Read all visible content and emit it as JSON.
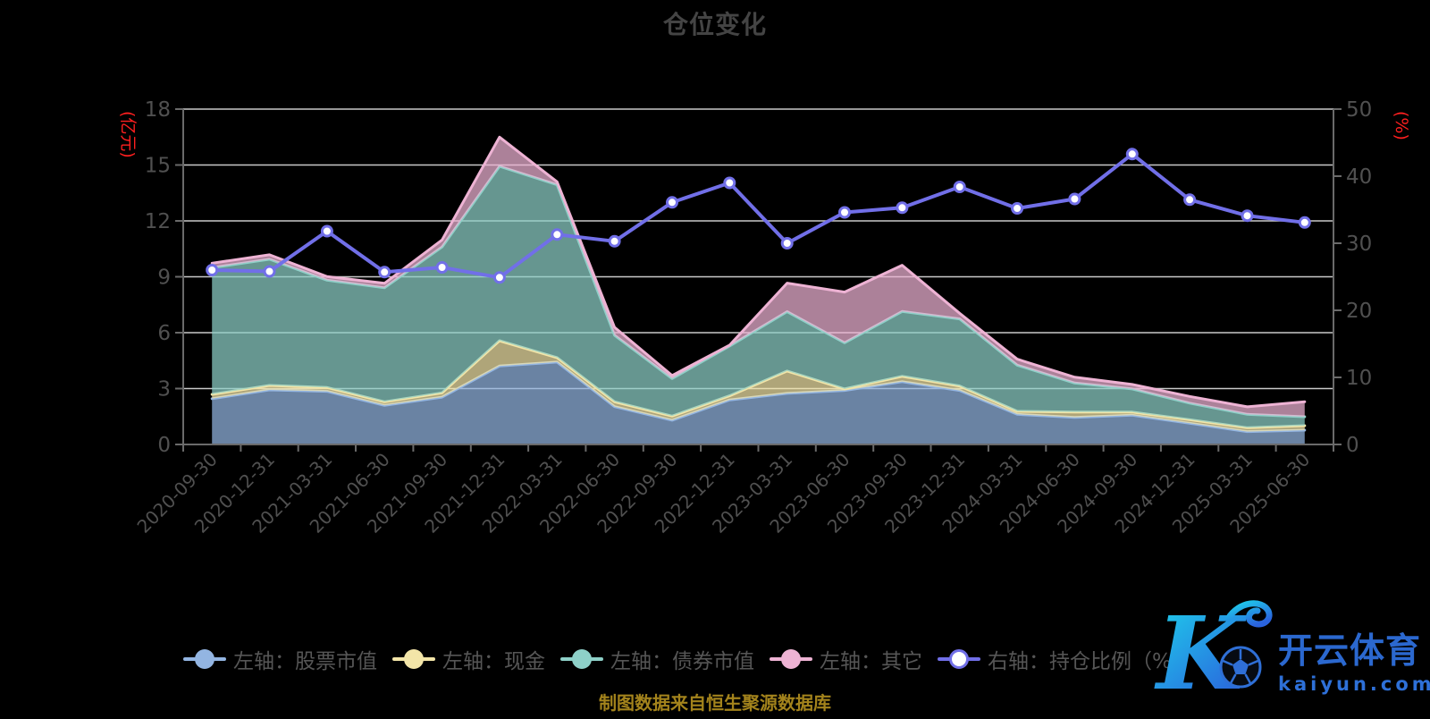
{
  "title": "仓位变化",
  "source_note": "制图数据来自恒生聚源数据库",
  "watermark": {
    "brand": "开云体育",
    "domain": "kaiyun.com",
    "accent": "#2b68cf"
  },
  "chart_data": {
    "type": "area",
    "stacked": true,
    "title": "仓位变化",
    "grid": true,
    "grid_color": "#c9c9c9",
    "axis_line_color": "#6a6a6a",
    "tick_label_color": "#505050",
    "fill_opacity": 0.72,
    "background": "#000000",
    "legend_position": "bottom",
    "categories": [
      "2020-09-30",
      "2020-12-31",
      "2021-03-31",
      "2021-06-30",
      "2021-09-30",
      "2021-12-31",
      "2022-03-31",
      "2022-06-30",
      "2022-09-30",
      "2022-12-31",
      "2023-03-31",
      "2023-06-30",
      "2023-09-30",
      "2023-12-31",
      "2024-03-31",
      "2024-06-30",
      "2024-09-30",
      "2024-12-31",
      "2025-03-31",
      "2025-06-30"
    ],
    "left_axis": {
      "label": "(亿元)",
      "label_color": "#ff1f1f",
      "ticks": [
        0,
        3,
        6,
        9,
        12,
        15,
        18
      ],
      "max": 18
    },
    "right_axis": {
      "label": "(%)",
      "label_color": "#ff1f1f",
      "ticks": [
        0,
        10,
        20,
        30,
        40,
        50
      ],
      "max": 50
    },
    "series": [
      {
        "name": "左轴：股票市值",
        "type": "area",
        "color": "#93b5e2",
        "values": [
          2.46,
          2.93,
          2.85,
          2.1,
          2.54,
          4.21,
          4.42,
          2.03,
          1.3,
          2.39,
          2.74,
          2.9,
          3.37,
          2.9,
          1.62,
          1.45,
          1.57,
          1.14,
          0.69,
          0.77
        ]
      },
      {
        "name": "左轴：现金",
        "type": "area",
        "color": "#f3e5a8",
        "values": [
          0.23,
          0.24,
          0.21,
          0.19,
          0.23,
          1.36,
          0.24,
          0.26,
          0.22,
          0.22,
          1.2,
          0.08,
          0.29,
          0.24,
          0.16,
          0.29,
          0.17,
          0.19,
          0.21,
          0.24
        ]
      },
      {
        "name": "左轴：债券市值",
        "type": "area",
        "color": "#8ed0c8",
        "values": [
          6.8,
          6.77,
          5.76,
          6.12,
          7.83,
          9.36,
          9.28,
          3.57,
          2.02,
          2.67,
          3.19,
          2.48,
          3.48,
          3.6,
          2.48,
          1.56,
          1.24,
          0.89,
          0.72,
          0.48
        ]
      },
      {
        "name": "左轴：其它",
        "type": "area",
        "color": "#eeb3d4",
        "values": [
          0.24,
          0.24,
          0.19,
          0.24,
          0.38,
          1.57,
          0.16,
          0.43,
          0.16,
          0.05,
          1.53,
          2.72,
          2.48,
          0.3,
          0.32,
          0.31,
          0.24,
          0.36,
          0.4,
          0.8
        ]
      },
      {
        "name": "右轴：持仓比例（%）",
        "type": "line",
        "color": "#716fe8",
        "marker": "white-circle",
        "values": [
          26.0,
          25.8,
          31.8,
          25.7,
          26.4,
          24.9,
          31.3,
          30.3,
          36.1,
          39.0,
          30.0,
          34.6,
          35.3,
          38.4,
          35.2,
          36.6,
          43.3,
          36.5,
          34.1,
          33.1
        ]
      }
    ]
  }
}
